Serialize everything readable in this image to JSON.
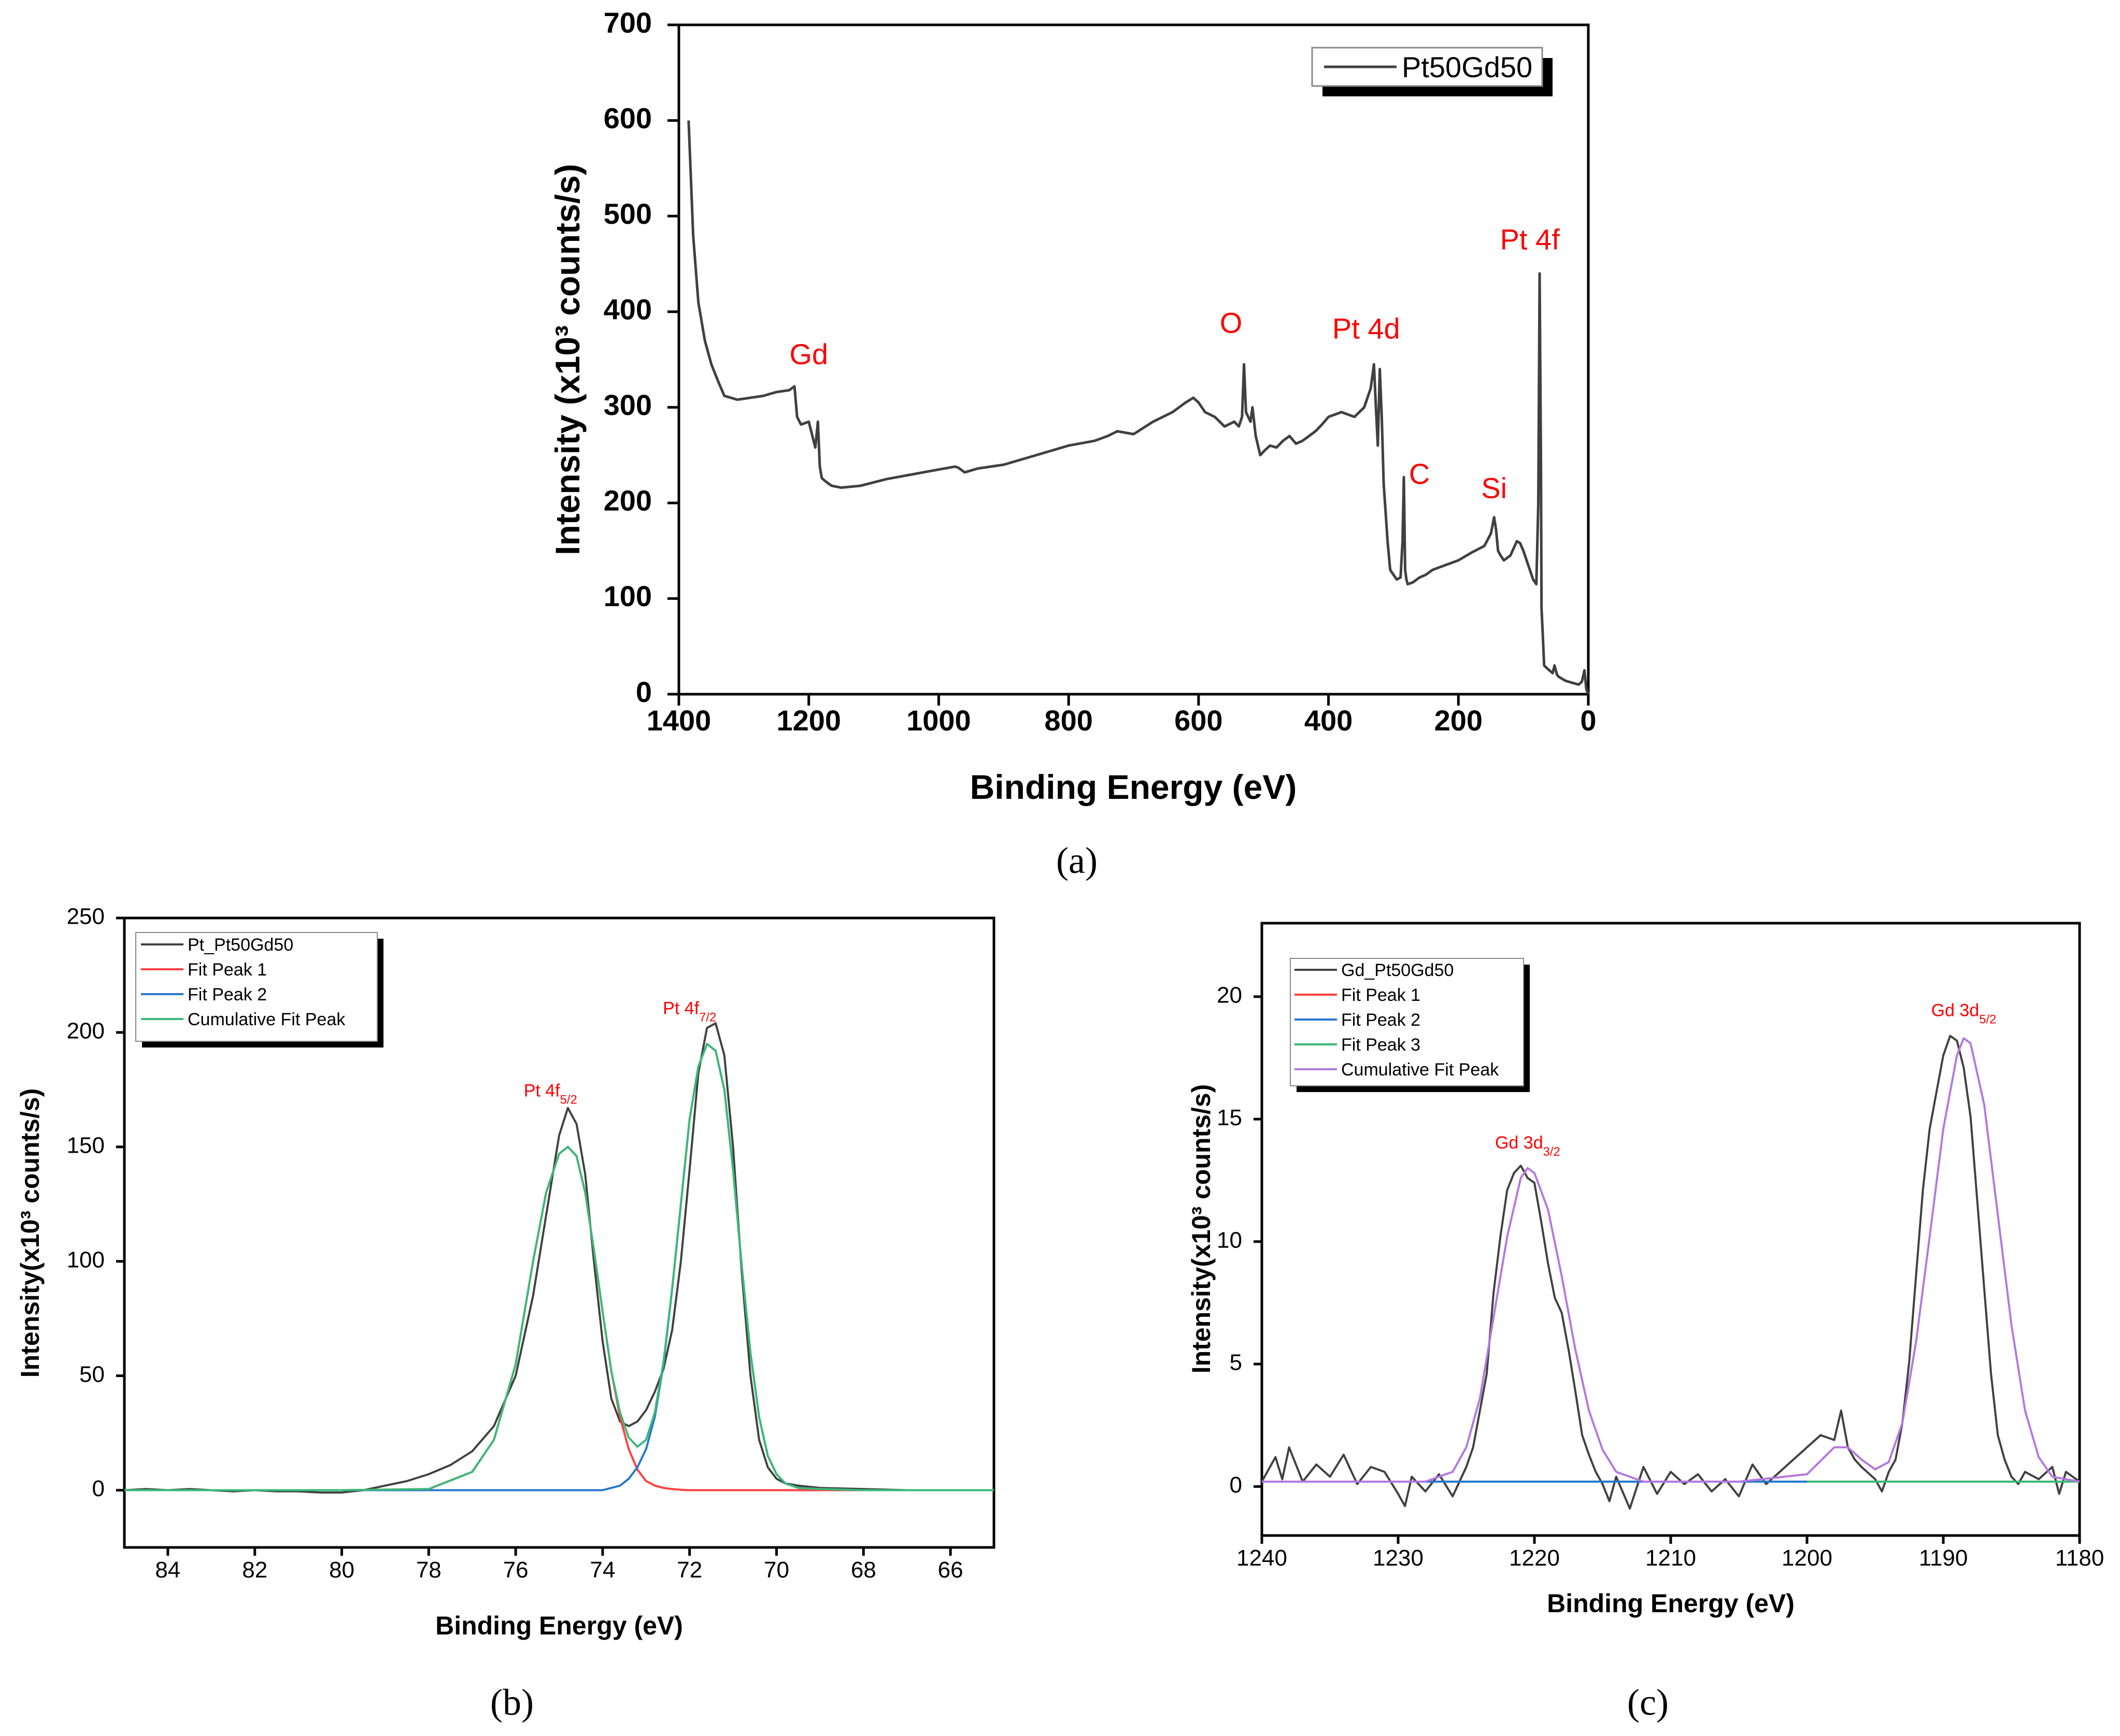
{
  "chart_data": [
    {
      "id": "a",
      "type": "line",
      "panel_label": "(a)",
      "xlabel": "Binding Energy (eV)",
      "ylabel": "Intensity (x10³ counts/s)",
      "xlim": [
        1400,
        0
      ],
      "ylim": [
        0,
        700
      ],
      "xticks": [
        1400,
        1200,
        1000,
        800,
        600,
        400,
        200,
        0
      ],
      "yticks": [
        0,
        100,
        200,
        300,
        400,
        500,
        600,
        700
      ],
      "legend": {
        "position": "top-right",
        "entries": [
          "Pt50Gd50"
        ]
      },
      "series": [
        {
          "name": "Pt50Gd50",
          "color": "#404040",
          "x": [
            1385,
            1378,
            1370,
            1360,
            1350,
            1340,
            1330,
            1310,
            1290,
            1270,
            1250,
            1230,
            1222,
            1218,
            1212,
            1200,
            1190,
            1186,
            1183,
            1180,
            1175,
            1165,
            1150,
            1120,
            1080,
            1040,
            1000,
            975,
            970,
            960,
            940,
            900,
            850,
            800,
            760,
            740,
            725,
            700,
            670,
            640,
            620,
            608,
            600,
            590,
            575,
            560,
            545,
            538,
            533,
            530,
            527,
            520,
            517,
            512,
            505,
            498,
            490,
            480,
            470,
            460,
            450,
            440,
            430,
            420,
            410,
            400,
            380,
            360,
            345,
            335,
            330,
            327,
            324,
            321,
            318,
            315,
            312,
            309,
            305,
            300,
            295,
            289,
            286,
            284,
            282,
            280,
            278,
            270,
            260,
            250,
            240,
            220,
            200,
            180,
            160,
            150,
            145,
            142,
            139,
            135,
            130,
            120,
            110,
            105,
            100,
            95,
            90,
            85,
            80,
            77,
            75,
            73,
            72,
            70,
            68,
            65,
            60,
            55,
            52,
            48,
            45,
            40,
            35,
            25,
            15,
            10,
            6,
            3,
            0
          ],
          "values": [
            600,
            480,
            410,
            370,
            345,
            328,
            312,
            308,
            310,
            312,
            316,
            318,
            322,
            290,
            282,
            285,
            258,
            285,
            238,
            226,
            223,
            218,
            216,
            218,
            225,
            230,
            235,
            238,
            237,
            232,
            236,
            240,
            250,
            260,
            265,
            270,
            275,
            272,
            285,
            295,
            305,
            310,
            305,
            295,
            290,
            280,
            285,
            280,
            290,
            345,
            295,
            285,
            300,
            270,
            250,
            255,
            260,
            258,
            265,
            270,
            262,
            265,
            270,
            275,
            282,
            290,
            295,
            290,
            300,
            320,
            345,
            300,
            260,
            340,
            290,
            220,
            190,
            160,
            130,
            125,
            120,
            122,
            160,
            227,
            130,
            120,
            115,
            117,
            122,
            125,
            130,
            135,
            140,
            148,
            155,
            168,
            185,
            172,
            150,
            145,
            140,
            145,
            160,
            158,
            150,
            140,
            130,
            120,
            115,
            200,
            440,
            250,
            90,
            60,
            30,
            28,
            25,
            22,
            30,
            20,
            18,
            16,
            14,
            12,
            10,
            13,
            25,
            5,
            0
          ],
          "annotations": [
            {
              "text": "Gd",
              "x": 1200,
              "y": 345
            },
            {
              "text": "O",
              "x": 550,
              "y": 378
            },
            {
              "text": "Pt 4d",
              "x": 342,
              "y": 372
            },
            {
              "text": "C",
              "x": 260,
              "y": 220
            },
            {
              "text": "Si",
              "x": 145,
              "y": 205
            },
            {
              "text": "Pt 4f",
              "x": 90,
              "y": 465
            }
          ]
        }
      ]
    },
    {
      "id": "b",
      "type": "line",
      "panel_label": "(b)",
      "xlabel": "Binding Energy (eV)",
      "ylabel": "Intensity(x10³ counts/s)",
      "xlim": [
        85,
        65
      ],
      "ylim": [
        -25,
        250
      ],
      "xticks": [
        84,
        82,
        80,
        78,
        76,
        74,
        72,
        70,
        68,
        66
      ],
      "yticks": [
        0,
        50,
        100,
        150,
        200,
        250
      ],
      "legend": {
        "position": "top-left",
        "entries": [
          "Pt_Pt50Gd50",
          "Fit Peak 1",
          "Fit Peak 2",
          "Cumulative Fit Peak"
        ]
      },
      "series": [
        {
          "name": "Pt_Pt50Gd50",
          "color": "#404040",
          "x": [
            85,
            84.5,
            84,
            83.5,
            83,
            82.5,
            82,
            81.5,
            81,
            80.5,
            80,
            79.5,
            79,
            78.5,
            78,
            77.5,
            77,
            76.5,
            76,
            75.6,
            75.3,
            75,
            74.8,
            74.6,
            74.4,
            74.2,
            74,
            73.8,
            73.6,
            73.4,
            73.2,
            73,
            72.8,
            72.6,
            72.4,
            72.2,
            72,
            71.8,
            71.6,
            71.4,
            71.2,
            71,
            70.8,
            70.6,
            70.4,
            70.2,
            70,
            69.8,
            69.5,
            69,
            68,
            67,
            66,
            65
          ],
          "values": [
            0,
            0.5,
            0,
            0.5,
            0,
            -0.5,
            0,
            -0.5,
            -0.5,
            -1,
            -1,
            0,
            2,
            4,
            7,
            11,
            17,
            28,
            50,
            85,
            120,
            155,
            167,
            160,
            138,
            100,
            65,
            40,
            30,
            28,
            30,
            35,
            43,
            53,
            70,
            100,
            140,
            182,
            202,
            204,
            190,
            150,
            95,
            50,
            22,
            10,
            5,
            3,
            2,
            1,
            0.5,
            0,
            0,
            0
          ]
        },
        {
          "name": "Fit Peak 1",
          "color": "#ff4040",
          "x": [
            85,
            80,
            78,
            77,
            76.5,
            76,
            75.6,
            75.3,
            75,
            74.8,
            74.6,
            74.4,
            74.2,
            74,
            73.8,
            73.6,
            73.4,
            73.2,
            73,
            72.8,
            72.6,
            72.4,
            72.2,
            72,
            71.5,
            71,
            70,
            68,
            65
          ],
          "values": [
            0,
            0,
            0.5,
            8,
            22,
            55,
            100,
            130,
            147,
            150,
            146,
            130,
            105,
            78,
            52,
            32,
            18,
            9,
            4,
            2,
            1,
            0.5,
            0.2,
            0,
            0,
            0,
            0,
            0,
            0
          ]
        },
        {
          "name": "Fit Peak 2",
          "color": "#2878d0",
          "x": [
            85,
            76,
            74,
            73.6,
            73.4,
            73.2,
            73,
            72.8,
            72.6,
            72.4,
            72.2,
            72,
            71.8,
            71.6,
            71.4,
            71.2,
            71,
            70.8,
            70.6,
            70.4,
            70.2,
            70,
            69.8,
            69.5,
            69,
            68,
            65
          ],
          "values": [
            0,
            0,
            0,
            2,
            5,
            10,
            18,
            32,
            55,
            88,
            125,
            162,
            185,
            195,
            192,
            175,
            140,
            98,
            60,
            32,
            15,
            7,
            3,
            1,
            0.5,
            0,
            0
          ]
        },
        {
          "name": "Cumulative Fit Peak",
          "color": "#3cb878",
          "x": [
            85,
            80,
            78,
            77,
            76.5,
            76,
            75.6,
            75.3,
            75,
            74.8,
            74.6,
            74.4,
            74.2,
            74,
            73.8,
            73.6,
            73.4,
            73.2,
            73,
            72.8,
            72.6,
            72.4,
            72.2,
            72,
            71.8,
            71.6,
            71.4,
            71.2,
            71,
            70.8,
            70.6,
            70.4,
            70.2,
            70,
            69.8,
            69.5,
            69,
            68,
            65
          ],
          "values": [
            0,
            0,
            0.5,
            8,
            22,
            55,
            100,
            130,
            147,
            150,
            146,
            130,
            105,
            78,
            52,
            34,
            23,
            19,
            22,
            34,
            56,
            88,
            125,
            162,
            185,
            195,
            192,
            175,
            140,
            98,
            60,
            32,
            15,
            7,
            3,
            1,
            0.5,
            0,
            0
          ]
        }
      ],
      "annotations": [
        {
          "text": "Pt 4f",
          "sub": "5/2",
          "x": 75.2,
          "y": 172
        },
        {
          "text": "Pt 4f",
          "sub": "7/2",
          "x": 72.0,
          "y": 208
        }
      ]
    },
    {
      "id": "c",
      "type": "line",
      "panel_label": "(c)",
      "xlabel": "Binding Energy (eV)",
      "ylabel": "Intensity(x10³ counts/s)",
      "xlim": [
        1240,
        1180
      ],
      "ylim": [
        -2,
        23
      ],
      "xticks": [
        1240,
        1230,
        1220,
        1210,
        1200,
        1190,
        1180
      ],
      "yticks": [
        0,
        5,
        10,
        15,
        20
      ],
      "legend": {
        "position": "top-left",
        "entries": [
          "Gd_Pt50Gd50",
          "Fit Peak 1",
          "Fit Peak 2",
          "Fit Peak 3",
          "Cumulative Fit Peak"
        ]
      },
      "series": [
        {
          "name": "Gd_Pt50Gd50",
          "color": "#404040",
          "x": [
            1240,
            1239,
            1238.5,
            1238,
            1237,
            1236,
            1235,
            1234,
            1233,
            1232,
            1231,
            1230,
            1229.5,
            1229,
            1228,
            1227,
            1226,
            1225,
            1224.5,
            1224,
            1223.5,
            1223,
            1222.5,
            1222,
            1221.5,
            1221,
            1220.5,
            1220,
            1219.5,
            1219,
            1218.5,
            1218,
            1217.5,
            1217,
            1216.5,
            1216,
            1215.5,
            1215,
            1214.5,
            1214,
            1213,
            1212,
            1211,
            1210,
            1209,
            1208,
            1207,
            1206,
            1205,
            1204,
            1203,
            1202,
            1201,
            1200,
            1199,
            1198,
            1197.5,
            1197,
            1196.5,
            1196,
            1195,
            1194.5,
            1194,
            1193.5,
            1193,
            1192.5,
            1192,
            1191.5,
            1191,
            1190.5,
            1190,
            1189.5,
            1189,
            1188.5,
            1188,
            1187.5,
            1187,
            1186.5,
            1186,
            1185.5,
            1185,
            1184.5,
            1184,
            1183,
            1182,
            1181.5,
            1181,
            1180
          ],
          "values": [
            0.2,
            1.2,
            0.3,
            1.6,
            0.2,
            0.9,
            0.4,
            1.3,
            0.1,
            0.8,
            0.6,
            -0.3,
            -0.8,
            0.4,
            -0.2,
            0.5,
            -0.4,
            0.8,
            1.6,
            3.1,
            4.6,
            7.9,
            10.2,
            12.1,
            12.8,
            13.1,
            12.6,
            12.4,
            10.8,
            9.1,
            7.7,
            7.1,
            5.6,
            3.9,
            2.1,
            1.3,
            0.6,
            0.1,
            -0.6,
            0.4,
            -0.9,
            0.8,
            -0.3,
            0.6,
            0.1,
            0.5,
            -0.2,
            0.3,
            -0.4,
            0.9,
            0.1,
            0.6,
            1.1,
            1.6,
            2.1,
            1.9,
            3.1,
            1.6,
            1.1,
            0.8,
            0.3,
            -0.2,
            0.6,
            1.1,
            2.6,
            5.1,
            8.6,
            12.1,
            14.6,
            16.1,
            17.6,
            18.4,
            18.2,
            17.1,
            15.1,
            11.6,
            8.1,
            4.6,
            2.1,
            1.1,
            0.4,
            0.1,
            0.6,
            0.3,
            0.8,
            -0.3,
            0.6,
            0.2
          ]
        },
        {
          "name": "Fit Peak 1",
          "color": "#ff4040",
          "x": [
            1240,
            1180
          ],
          "values": [
            0.2,
            0.2
          ]
        },
        {
          "name": "Fit Peak 2",
          "color": "#2878d0",
          "x": [
            1240,
            1200
          ],
          "values": [
            0.2,
            0.2
          ]
        },
        {
          "name": "Fit Peak 3",
          "color": "#3cb878",
          "x": [
            1200,
            1180
          ],
          "values": [
            0.2,
            0.2
          ]
        },
        {
          "name": "Cumulative Fit Peak",
          "color": "#b478e0",
          "x": [
            1240,
            1228,
            1226,
            1225,
            1224,
            1223,
            1222,
            1221,
            1220.5,
            1220,
            1219,
            1218,
            1217,
            1216,
            1215,
            1214,
            1212,
            1205,
            1200,
            1198,
            1197,
            1196,
            1195,
            1194,
            1193,
            1192,
            1191,
            1190,
            1189,
            1188.5,
            1188,
            1187,
            1186,
            1185,
            1184,
            1183,
            1182,
            1180
          ],
          "values": [
            0.2,
            0.2,
            0.6,
            1.6,
            3.6,
            6.9,
            10.2,
            12.6,
            13.0,
            12.8,
            11.3,
            8.6,
            5.6,
            3.1,
            1.5,
            0.6,
            0.2,
            0.2,
            0.5,
            1.6,
            1.6,
            1.1,
            0.7,
            1.0,
            2.6,
            5.9,
            10.2,
            14.6,
            17.6,
            18.3,
            18.1,
            15.6,
            11.1,
            6.6,
            3.1,
            1.2,
            0.4,
            0.2
          ]
        }
      ],
      "annotations": [
        {
          "text": "Gd 3d",
          "sub": "3/2",
          "x": 1220.5,
          "y": 13.8
        },
        {
          "text": "Gd 3d",
          "sub": "5/2",
          "x": 1188.5,
          "y": 19.2
        }
      ]
    }
  ]
}
